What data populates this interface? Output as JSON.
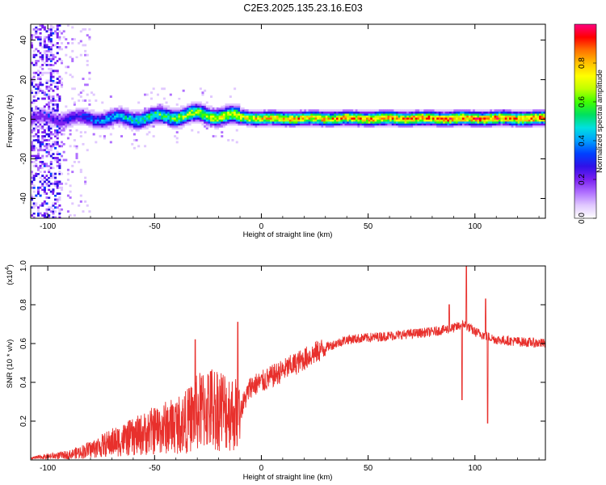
{
  "title": "C2E3.2025.135.23.16.E03",
  "colors": {
    "snr_line": "#e8302c",
    "colormap": [
      "#ffffff",
      "#e0c8ff",
      "#b070ff",
      "#7a20f0",
      "#3010e8",
      "#0040ff",
      "#00a0ff",
      "#00e0e0",
      "#00e060",
      "#40ff00",
      "#c0ff00",
      "#ffff00",
      "#ffc000",
      "#ff7000",
      "#ff0000",
      "#ff0080"
    ]
  },
  "chart_data": [
    {
      "type": "heatmap",
      "xlabel": "Height of straight line (km)",
      "ylabel": "Frequency (Hz)",
      "xlim": [
        -108,
        133
      ],
      "ylim": [
        -50,
        48
      ],
      "xticks": [
        -100,
        -50,
        0,
        50,
        100
      ],
      "yticks": [
        -40,
        -20,
        0,
        20,
        40
      ],
      "colorbar": {
        "label": "Normalized spectral amplitude",
        "range": [
          0.0,
          1.0
        ],
        "ticks": [
          0.0,
          0.2,
          0.4,
          0.6,
          0.8
        ]
      },
      "description_points": [
        {
          "x": -100,
          "center_freq": 0,
          "amplitude": 0.25
        },
        {
          "x": -60,
          "center_freq": 0,
          "amplitude": 0.55
        },
        {
          "x": -30,
          "center_freq": 2,
          "amplitude": 0.75
        },
        {
          "x": 0,
          "center_freq": 0,
          "amplitude": 0.85
        },
        {
          "x": 50,
          "center_freq": 0,
          "amplitude": 0.9
        },
        {
          "x": 100,
          "center_freq": 0,
          "amplitude": 0.95
        },
        {
          "x": 133,
          "center_freq": 0,
          "amplitude": 0.95
        }
      ]
    },
    {
      "type": "line",
      "xlabel": "Height of straight line (km)",
      "ylabel": "SNR (10 * v/v)",
      "multiplier_label": "(x10",
      "multiplier_exp": "4",
      "multiplier_close": ")",
      "xlim": [
        -108,
        133
      ],
      "ylim": [
        0,
        1.0
      ],
      "xticks": [
        -100,
        -50,
        0,
        50,
        100
      ],
      "yticks": [
        0.2,
        0.4,
        0.6,
        0.8,
        1.0
      ],
      "series": [
        {
          "x": [
            -108,
            -100,
            -90,
            -80,
            -70,
            -60,
            -50,
            -40,
            -35,
            -30,
            -25,
            -20,
            -15,
            -10,
            -5,
            0,
            10,
            20,
            30,
            40,
            50,
            60,
            70,
            80,
            85,
            90,
            95,
            100,
            105,
            110,
            120,
            133
          ],
          "y": [
            0.01,
            0.02,
            0.03,
            0.06,
            0.1,
            0.13,
            0.17,
            0.2,
            0.22,
            0.27,
            0.3,
            0.3,
            0.28,
            0.25,
            0.38,
            0.4,
            0.46,
            0.52,
            0.58,
            0.62,
            0.63,
            0.64,
            0.65,
            0.66,
            0.67,
            0.68,
            0.7,
            0.66,
            0.64,
            0.62,
            0.61,
            0.6
          ]
        }
      ],
      "spikes": [
        {
          "x": -31,
          "y": 0.62
        },
        {
          "x": -11,
          "y": 0.71
        },
        {
          "x": 88,
          "y": 0.8
        },
        {
          "x": 96,
          "y": 1.0
        },
        {
          "x": 94,
          "y": 0.31
        },
        {
          "x": 105,
          "y": 0.83
        },
        {
          "x": 106,
          "y": 0.19
        }
      ]
    }
  ]
}
